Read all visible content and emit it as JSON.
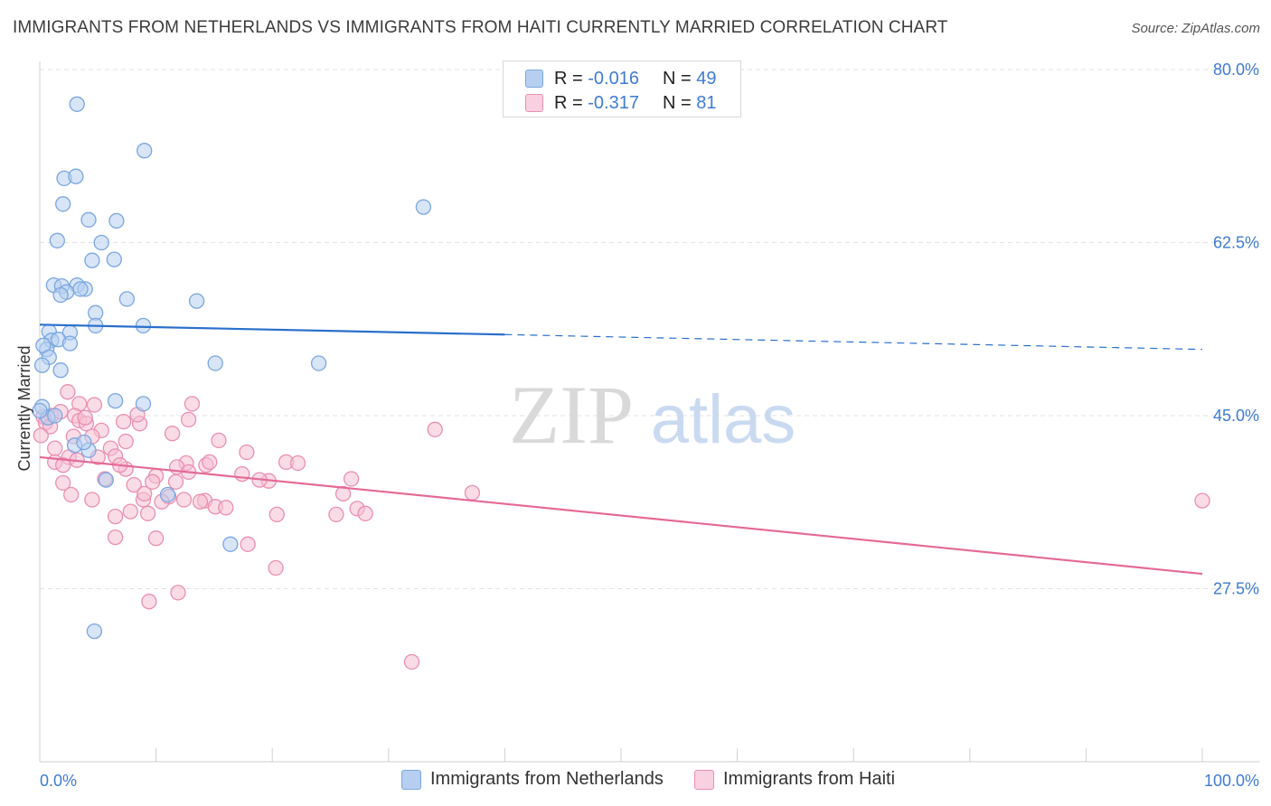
{
  "header": {
    "title": "IMMIGRANTS FROM NETHERLANDS VS IMMIGRANTS FROM HAITI CURRENTLY MARRIED CORRELATION CHART",
    "source": "Source: ZipAtlas.com"
  },
  "legend": {
    "r_label": "R =",
    "n_label": "N =",
    "rows": [
      {
        "r": "-0.016",
        "n": "49"
      },
      {
        "r": "-0.317",
        "n": "81"
      }
    ]
  },
  "watermark": {
    "zip": "ZIP",
    "atlas": "atlas"
  },
  "colors": {
    "blue_fill": "#b6cff1",
    "blue_stroke": "#7aa6e0",
    "blue_line": "#2a6fcc",
    "pink_fill": "#f5bfd2",
    "pink_stroke": "#e98fb0",
    "pink_line": "#e46a96",
    "tick_text": "#3f7bd1"
  },
  "chart_data": {
    "type": "scatter",
    "title": "IMMIGRANTS FROM NETHERLANDS VS IMMIGRANTS FROM HAITI CURRENTLY MARRIED CORRELATION CHART",
    "xlabel": "",
    "ylabel": "Currently Married",
    "xlim": [
      0,
      100
    ],
    "ylim": [
      10,
      83
    ],
    "x_tick_labels": [
      "0.0%",
      "100.0%"
    ],
    "y_ticks": [
      27.5,
      45.0,
      62.5,
      80.0
    ],
    "y_tick_labels": [
      "27.5%",
      "45.0%",
      "62.5%",
      "80.0%"
    ],
    "grid": "horizontal dashed",
    "legend_position": "top-center",
    "series": [
      {
        "name": "Immigrants from Netherlands",
        "color": "#7aa6e0",
        "points": [
          [
            3.2,
            76.5
          ],
          [
            9.0,
            71.8
          ],
          [
            2.1,
            69.0
          ],
          [
            3.1,
            69.2
          ],
          [
            2.0,
            66.4
          ],
          [
            4.2,
            64.8
          ],
          [
            6.6,
            64.7
          ],
          [
            1.5,
            62.7
          ],
          [
            5.3,
            62.5
          ],
          [
            6.4,
            60.8
          ],
          [
            4.5,
            60.7
          ],
          [
            1.2,
            58.2
          ],
          [
            1.9,
            58.1
          ],
          [
            3.2,
            58.2
          ],
          [
            3.9,
            57.8
          ],
          [
            2.3,
            57.5
          ],
          [
            3.5,
            57.8
          ],
          [
            1.8,
            57.2
          ],
          [
            7.5,
            56.8
          ],
          [
            13.5,
            56.6
          ],
          [
            4.8,
            55.4
          ],
          [
            8.9,
            54.1
          ],
          [
            4.8,
            54.1
          ],
          [
            2.6,
            53.4
          ],
          [
            0.8,
            53.5
          ],
          [
            1.0,
            52.6
          ],
          [
            1.6,
            52.7
          ],
          [
            0.6,
            51.7
          ],
          [
            2.6,
            52.3
          ],
          [
            0.3,
            52.1
          ],
          [
            33.0,
            66.1
          ],
          [
            0.8,
            50.9
          ],
          [
            15.1,
            50.3
          ],
          [
            24.0,
            50.3
          ],
          [
            0.2,
            50.1
          ],
          [
            1.8,
            49.6
          ],
          [
            6.5,
            46.5
          ],
          [
            8.9,
            46.2
          ],
          [
            0.2,
            45.9
          ],
          [
            0.7,
            44.8
          ],
          [
            1.3,
            45.0
          ],
          [
            3.0,
            42.0
          ],
          [
            4.2,
            41.5
          ],
          [
            3.8,
            42.3
          ],
          [
            5.7,
            38.5
          ],
          [
            11.0,
            37.0
          ],
          [
            16.4,
            32.0
          ],
          [
            4.7,
            23.2
          ],
          [
            0.0,
            45.5
          ]
        ]
      },
      {
        "name": "Immigrants from Haiti",
        "color": "#e98fb0",
        "points": [
          [
            2.4,
            47.4
          ],
          [
            4.7,
            46.1
          ],
          [
            3.4,
            46.2
          ],
          [
            1.0,
            45.0
          ],
          [
            0.3,
            44.9
          ],
          [
            0.5,
            44.3
          ],
          [
            1.8,
            45.4
          ],
          [
            3.0,
            45.0
          ],
          [
            3.4,
            44.5
          ],
          [
            7.2,
            44.4
          ],
          [
            4.0,
            44.2
          ],
          [
            5.3,
            43.5
          ],
          [
            8.6,
            44.2
          ],
          [
            8.4,
            45.1
          ],
          [
            13.1,
            46.2
          ],
          [
            12.8,
            44.6
          ],
          [
            0.9,
            43.9
          ],
          [
            2.9,
            42.9
          ],
          [
            4.5,
            42.9
          ],
          [
            0.1,
            43.0
          ],
          [
            1.3,
            41.7
          ],
          [
            2.5,
            40.8
          ],
          [
            6.1,
            41.7
          ],
          [
            6.5,
            40.9
          ],
          [
            1.3,
            40.3
          ],
          [
            2.0,
            40.0
          ],
          [
            3.2,
            40.5
          ],
          [
            15.4,
            42.5
          ],
          [
            21.2,
            40.3
          ],
          [
            22.2,
            40.2
          ],
          [
            7.4,
            39.6
          ],
          [
            12.6,
            40.2
          ],
          [
            11.8,
            39.8
          ],
          [
            12.8,
            39.3
          ],
          [
            14.3,
            40.0
          ],
          [
            17.4,
            39.1
          ],
          [
            19.7,
            38.4
          ],
          [
            26.8,
            38.6
          ],
          [
            34.0,
            43.6
          ],
          [
            37.2,
            37.2
          ],
          [
            11.7,
            38.3
          ],
          [
            11.1,
            36.8
          ],
          [
            5.6,
            38.6
          ],
          [
            8.1,
            38.0
          ],
          [
            8.9,
            36.5
          ],
          [
            2.7,
            37.0
          ],
          [
            4.5,
            36.5
          ],
          [
            9.0,
            37.1
          ],
          [
            10.5,
            36.3
          ],
          [
            12.4,
            36.5
          ],
          [
            14.2,
            36.4
          ],
          [
            15.1,
            35.8
          ],
          [
            16.0,
            35.7
          ],
          [
            26.1,
            37.1
          ],
          [
            27.3,
            35.6
          ],
          [
            25.5,
            35.0
          ],
          [
            6.5,
            34.8
          ],
          [
            7.8,
            35.3
          ],
          [
            9.3,
            35.1
          ],
          [
            20.4,
            35.0
          ],
          [
            28.0,
            35.1
          ],
          [
            100.0,
            36.4
          ],
          [
            6.5,
            32.7
          ],
          [
            10.0,
            32.6
          ],
          [
            17.9,
            32.0
          ],
          [
            20.3,
            29.6
          ],
          [
            11.9,
            27.1
          ],
          [
            9.4,
            26.2
          ],
          [
            32.0,
            20.1
          ],
          [
            3.9,
            44.8
          ],
          [
            5.0,
            40.8
          ],
          [
            14.6,
            40.3
          ],
          [
            18.9,
            38.5
          ],
          [
            10.0,
            38.9
          ],
          [
            7.4,
            42.4
          ],
          [
            13.8,
            36.3
          ],
          [
            2.0,
            38.2
          ],
          [
            11.4,
            43.2
          ],
          [
            17.8,
            41.3
          ],
          [
            9.7,
            38.3
          ],
          [
            6.9,
            40.0
          ]
        ]
      }
    ],
    "trend_lines": [
      {
        "series": "Immigrants from Netherlands",
        "x0": 0,
        "y0": 54.2,
        "x1": 100,
        "y1": 51.7,
        "solid_until_x": 40
      },
      {
        "series": "Immigrants from Haiti",
        "x0": 0,
        "y0": 40.8,
        "x1": 100,
        "y1": 29.0,
        "solid_until_x": 100
      }
    ]
  }
}
